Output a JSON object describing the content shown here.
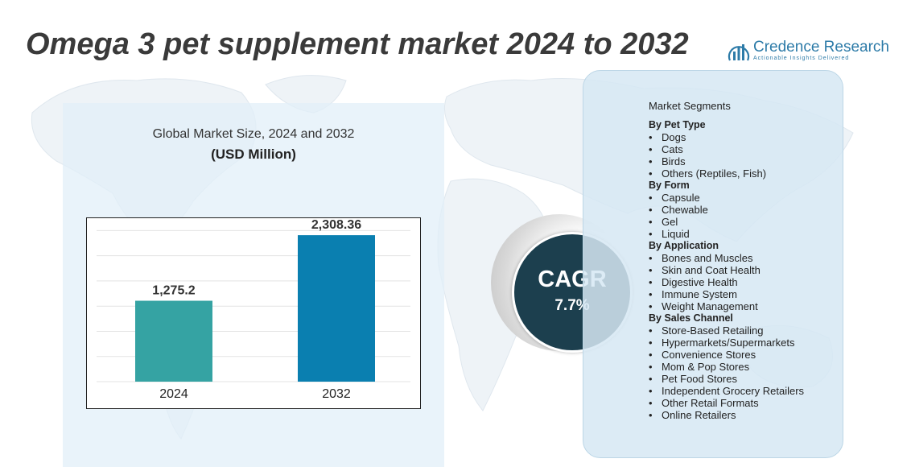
{
  "title": "Omega 3 pet supplement market 2024 to 2032",
  "logo": {
    "name": "Credence Research",
    "tagline": "Actionable Insights Delivered",
    "icon": "bar-chart-logo-icon",
    "color": "#2d7ba8"
  },
  "chart_data": {
    "type": "bar",
    "title": "Global Market Size, 2024 and 2032",
    "unit_label": "(USD Million)",
    "categories": [
      "2024",
      "2032"
    ],
    "values": [
      1275.2,
      2308.36
    ],
    "value_labels": [
      "1,275.2",
      "2,308.36"
    ],
    "colors": [
      "#35a3a3",
      "#0a7fb0"
    ],
    "ylim": [
      0,
      2500
    ],
    "grid": true,
    "legend": "none"
  },
  "cagr": {
    "label": "CAGR",
    "value": "7.7%",
    "color": "#1c3f4e"
  },
  "segments": {
    "heading": "Market Segments",
    "groups": [
      {
        "title": "By Pet Type",
        "items": [
          "Dogs",
          "Cats",
          "Birds",
          "Others (Reptiles, Fish)"
        ]
      },
      {
        "title": "By Form",
        "items": [
          "Capsule",
          "Chewable",
          "Gel",
          "Liquid"
        ]
      },
      {
        "title": "By Application",
        "items": [
          "Bones and Muscles",
          "Skin and Coat Health",
          "Digestive Health",
          "Immune System",
          "Weight Management"
        ]
      },
      {
        "title": "By Sales Channel",
        "items": [
          "Store-Based Retailing",
          "Hypermarkets/Supermarkets",
          "Convenience Stores",
          "Mom & Pop Stores",
          "Pet Food Stores",
          "Independent Grocery Retailers",
          "Other Retail Formats",
          "Online Retailers"
        ]
      }
    ]
  }
}
